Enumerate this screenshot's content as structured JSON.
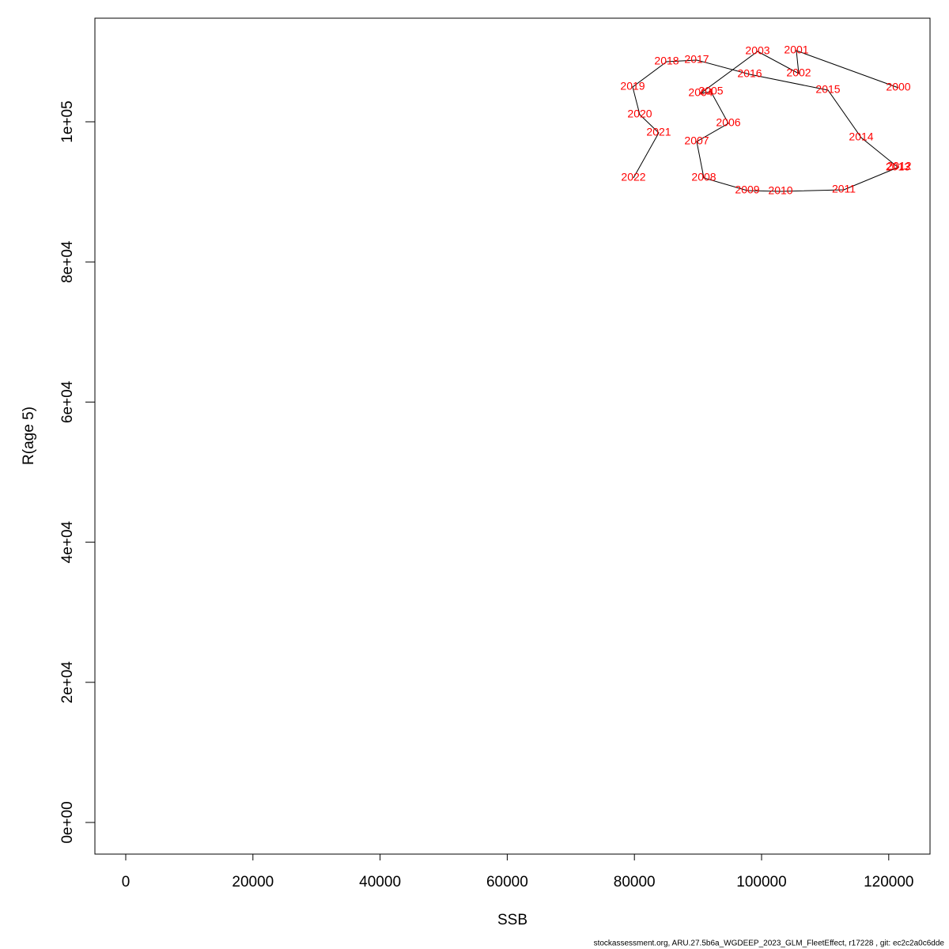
{
  "chart_data": {
    "type": "line",
    "x_label": "SSB",
    "y_label": "R(age 5)",
    "footer": "stockassessment.org, ARU.27.5b6a_WGDEEP_2023_GLM_FleetEffect, r17228 , git: ec2c2a0c6dde",
    "years": [
      2000,
      2001,
      2002,
      2003,
      2004,
      2005,
      2006,
      2007,
      2008,
      2009,
      2010,
      2011,
      2012,
      2013,
      2014,
      2015,
      2016,
      2017,
      2018,
      2019,
      2020,
      2021,
      2022
    ],
    "x": [
      121517,
      105473,
      105846,
      99378,
      90423,
      92040,
      94776,
      89801,
      90920,
      97761,
      102985,
      112935,
      121642,
      121450,
      115672,
      110448,
      98134,
      89801,
      85075,
      79726,
      80846,
      83831,
      79851
    ],
    "series": [
      {
        "color": "#ff0000",
        "line_color": "#000000",
        "values": [
          104853,
          110158,
          106885,
          110045,
          104063,
          104289,
          99774,
          97178,
          91986,
          90181,
          90068,
          90293,
          93566,
          93500,
          97743,
          104515,
          106772,
          108804,
          108578,
          104966,
          101016,
          98420,
          91986
        ]
      }
    ],
    "xlim": [
      -4851,
      126493
    ],
    "ylim": [
      -4515,
      114786
    ],
    "xticks": [
      0,
      20000,
      40000,
      60000,
      80000,
      100000,
      120000
    ],
    "yticks": [
      {
        "value": 0,
        "label": "0e+00"
      },
      {
        "value": 20000,
        "label": "2e+04"
      },
      {
        "value": 40000,
        "label": "4e+04"
      },
      {
        "value": 60000,
        "label": "6e+04"
      },
      {
        "value": 80000,
        "label": "8e+04"
      },
      {
        "value": 100000,
        "label": "1e+05"
      }
    ]
  }
}
